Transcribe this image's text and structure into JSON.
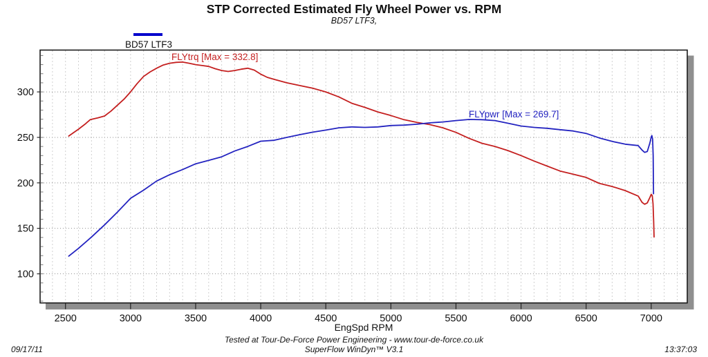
{
  "header": {
    "title": "STP Corrected Estimated Fly Wheel Power vs. RPM",
    "subtitle": "BD57 LTF3,"
  },
  "legend": {
    "label": "BD57 LTF3",
    "swatch_color": "#0000cc"
  },
  "annotations": {
    "torque_label": "FLYtrq [Max = 332.8]",
    "power_label": "FLYpwr [Max = 269.7]"
  },
  "axes": {
    "xlabel": "EngSpd RPM"
  },
  "footer": {
    "line1": "Tested at Tour-De-Force Power Engineering - www.tour-de-force.co.uk",
    "line2": "SuperFlow WinDyn™ V3.1",
    "date": "09/17/11",
    "time": "13:37:03"
  },
  "chart_data": {
    "type": "line",
    "title": "STP Corrected Estimated Fly Wheel Power vs. RPM",
    "subtitle": "BD57 LTF3,",
    "xlabel": "EngSpd RPM",
    "ylabel": "",
    "legend_position": "top-left",
    "grid": "dotted",
    "grid_color": "#a0a0a0",
    "frame_color": "#1a1a1a",
    "shadow_color": "#8f8f8f",
    "xlim": [
      2305,
      7277
    ],
    "ylim": [
      68,
      346
    ],
    "x_ticks": [
      2500,
      3000,
      3500,
      4000,
      4500,
      5000,
      5500,
      6000,
      6500,
      7000
    ],
    "y_ticks": [
      100,
      150,
      200,
      250,
      300
    ],
    "x_minor_step": 100,
    "y_minor_step": 10,
    "series": [
      {
        "name": "FLYtrq",
        "max": 332.8,
        "color": "#c41f1f",
        "points": [
          [
            2525,
            251.5
          ],
          [
            2560,
            255
          ],
          [
            2600,
            259
          ],
          [
            2650,
            264.5
          ],
          [
            2690,
            269.5
          ],
          [
            2750,
            271.5
          ],
          [
            2800,
            273.5
          ],
          [
            2850,
            279
          ],
          [
            2900,
            285.5
          ],
          [
            2950,
            292
          ],
          [
            3000,
            300
          ],
          [
            3050,
            309
          ],
          [
            3100,
            317
          ],
          [
            3150,
            322
          ],
          [
            3200,
            326
          ],
          [
            3250,
            329.5
          ],
          [
            3300,
            331.5
          ],
          [
            3350,
            332.5
          ],
          [
            3400,
            332.8
          ],
          [
            3450,
            331.5
          ],
          [
            3500,
            330
          ],
          [
            3550,
            329
          ],
          [
            3600,
            328
          ],
          [
            3650,
            325.5
          ],
          [
            3700,
            323.5
          ],
          [
            3750,
            322.5
          ],
          [
            3800,
            323.5
          ],
          [
            3850,
            325
          ],
          [
            3900,
            326
          ],
          [
            3950,
            324
          ],
          [
            4000,
            319.5
          ],
          [
            4050,
            316
          ],
          [
            4100,
            314
          ],
          [
            4200,
            310
          ],
          [
            4300,
            307
          ],
          [
            4400,
            304
          ],
          [
            4500,
            300
          ],
          [
            4600,
            294.5
          ],
          [
            4700,
            287.5
          ],
          [
            4800,
            283
          ],
          [
            4900,
            278
          ],
          [
            5000,
            274
          ],
          [
            5100,
            269.5
          ],
          [
            5200,
            266.5
          ],
          [
            5300,
            264
          ],
          [
            5400,
            260.5
          ],
          [
            5500,
            255.5
          ],
          [
            5600,
            249
          ],
          [
            5700,
            243.5
          ],
          [
            5800,
            240
          ],
          [
            5900,
            235.5
          ],
          [
            6000,
            230
          ],
          [
            6100,
            224
          ],
          [
            6200,
            218.5
          ],
          [
            6300,
            213
          ],
          [
            6400,
            209.5
          ],
          [
            6500,
            206
          ],
          [
            6600,
            199.5
          ],
          [
            6700,
            196
          ],
          [
            6800,
            191.5
          ],
          [
            6900,
            185.5
          ],
          [
            6930,
            178.5
          ],
          [
            6950,
            176.5
          ],
          [
            6970,
            178
          ],
          [
            6990,
            184
          ],
          [
            7000,
            187.4
          ],
          [
            7008,
            186
          ],
          [
            7014,
            177
          ],
          [
            7019,
            158
          ],
          [
            7022,
            140.5
          ]
        ]
      },
      {
        "name": "FLYpwr",
        "max": 269.7,
        "color": "#2323c0",
        "points": [
          [
            2525,
            119.5
          ],
          [
            2600,
            128
          ],
          [
            2700,
            140.5
          ],
          [
            2800,
            153.8
          ],
          [
            2900,
            168
          ],
          [
            3000,
            183
          ],
          [
            3100,
            192
          ],
          [
            3200,
            202
          ],
          [
            3300,
            209
          ],
          [
            3400,
            214.6
          ],
          [
            3500,
            221
          ],
          [
            3600,
            224.7
          ],
          [
            3700,
            228.6
          ],
          [
            3800,
            235
          ],
          [
            3900,
            240
          ],
          [
            4000,
            245.8
          ],
          [
            4100,
            246.8
          ],
          [
            4200,
            250
          ],
          [
            4300,
            253
          ],
          [
            4400,
            255.7
          ],
          [
            4500,
            258
          ],
          [
            4600,
            260.5
          ],
          [
            4700,
            261.5
          ],
          [
            4800,
            261
          ],
          [
            4900,
            261.5
          ],
          [
            5000,
            263
          ],
          [
            5100,
            263.5
          ],
          [
            5200,
            264.5
          ],
          [
            5300,
            266
          ],
          [
            5400,
            267
          ],
          [
            5500,
            268.5
          ],
          [
            5600,
            269.7
          ],
          [
            5700,
            269.5
          ],
          [
            5800,
            268.5
          ],
          [
            5900,
            265.5
          ],
          [
            6000,
            262.5
          ],
          [
            6100,
            261
          ],
          [
            6200,
            260
          ],
          [
            6300,
            258.5
          ],
          [
            6400,
            257
          ],
          [
            6500,
            254.4
          ],
          [
            6600,
            249.4
          ],
          [
            6700,
            245.6
          ],
          [
            6800,
            242.5
          ],
          [
            6900,
            241
          ],
          [
            6930,
            236
          ],
          [
            6950,
            233.5
          ],
          [
            6970,
            234.5
          ],
          [
            6990,
            244
          ],
          [
            7000,
            250.5
          ],
          [
            7005,
            252
          ],
          [
            7011,
            248
          ],
          [
            7015,
            230
          ],
          [
            7018,
            188
          ]
        ]
      }
    ]
  }
}
